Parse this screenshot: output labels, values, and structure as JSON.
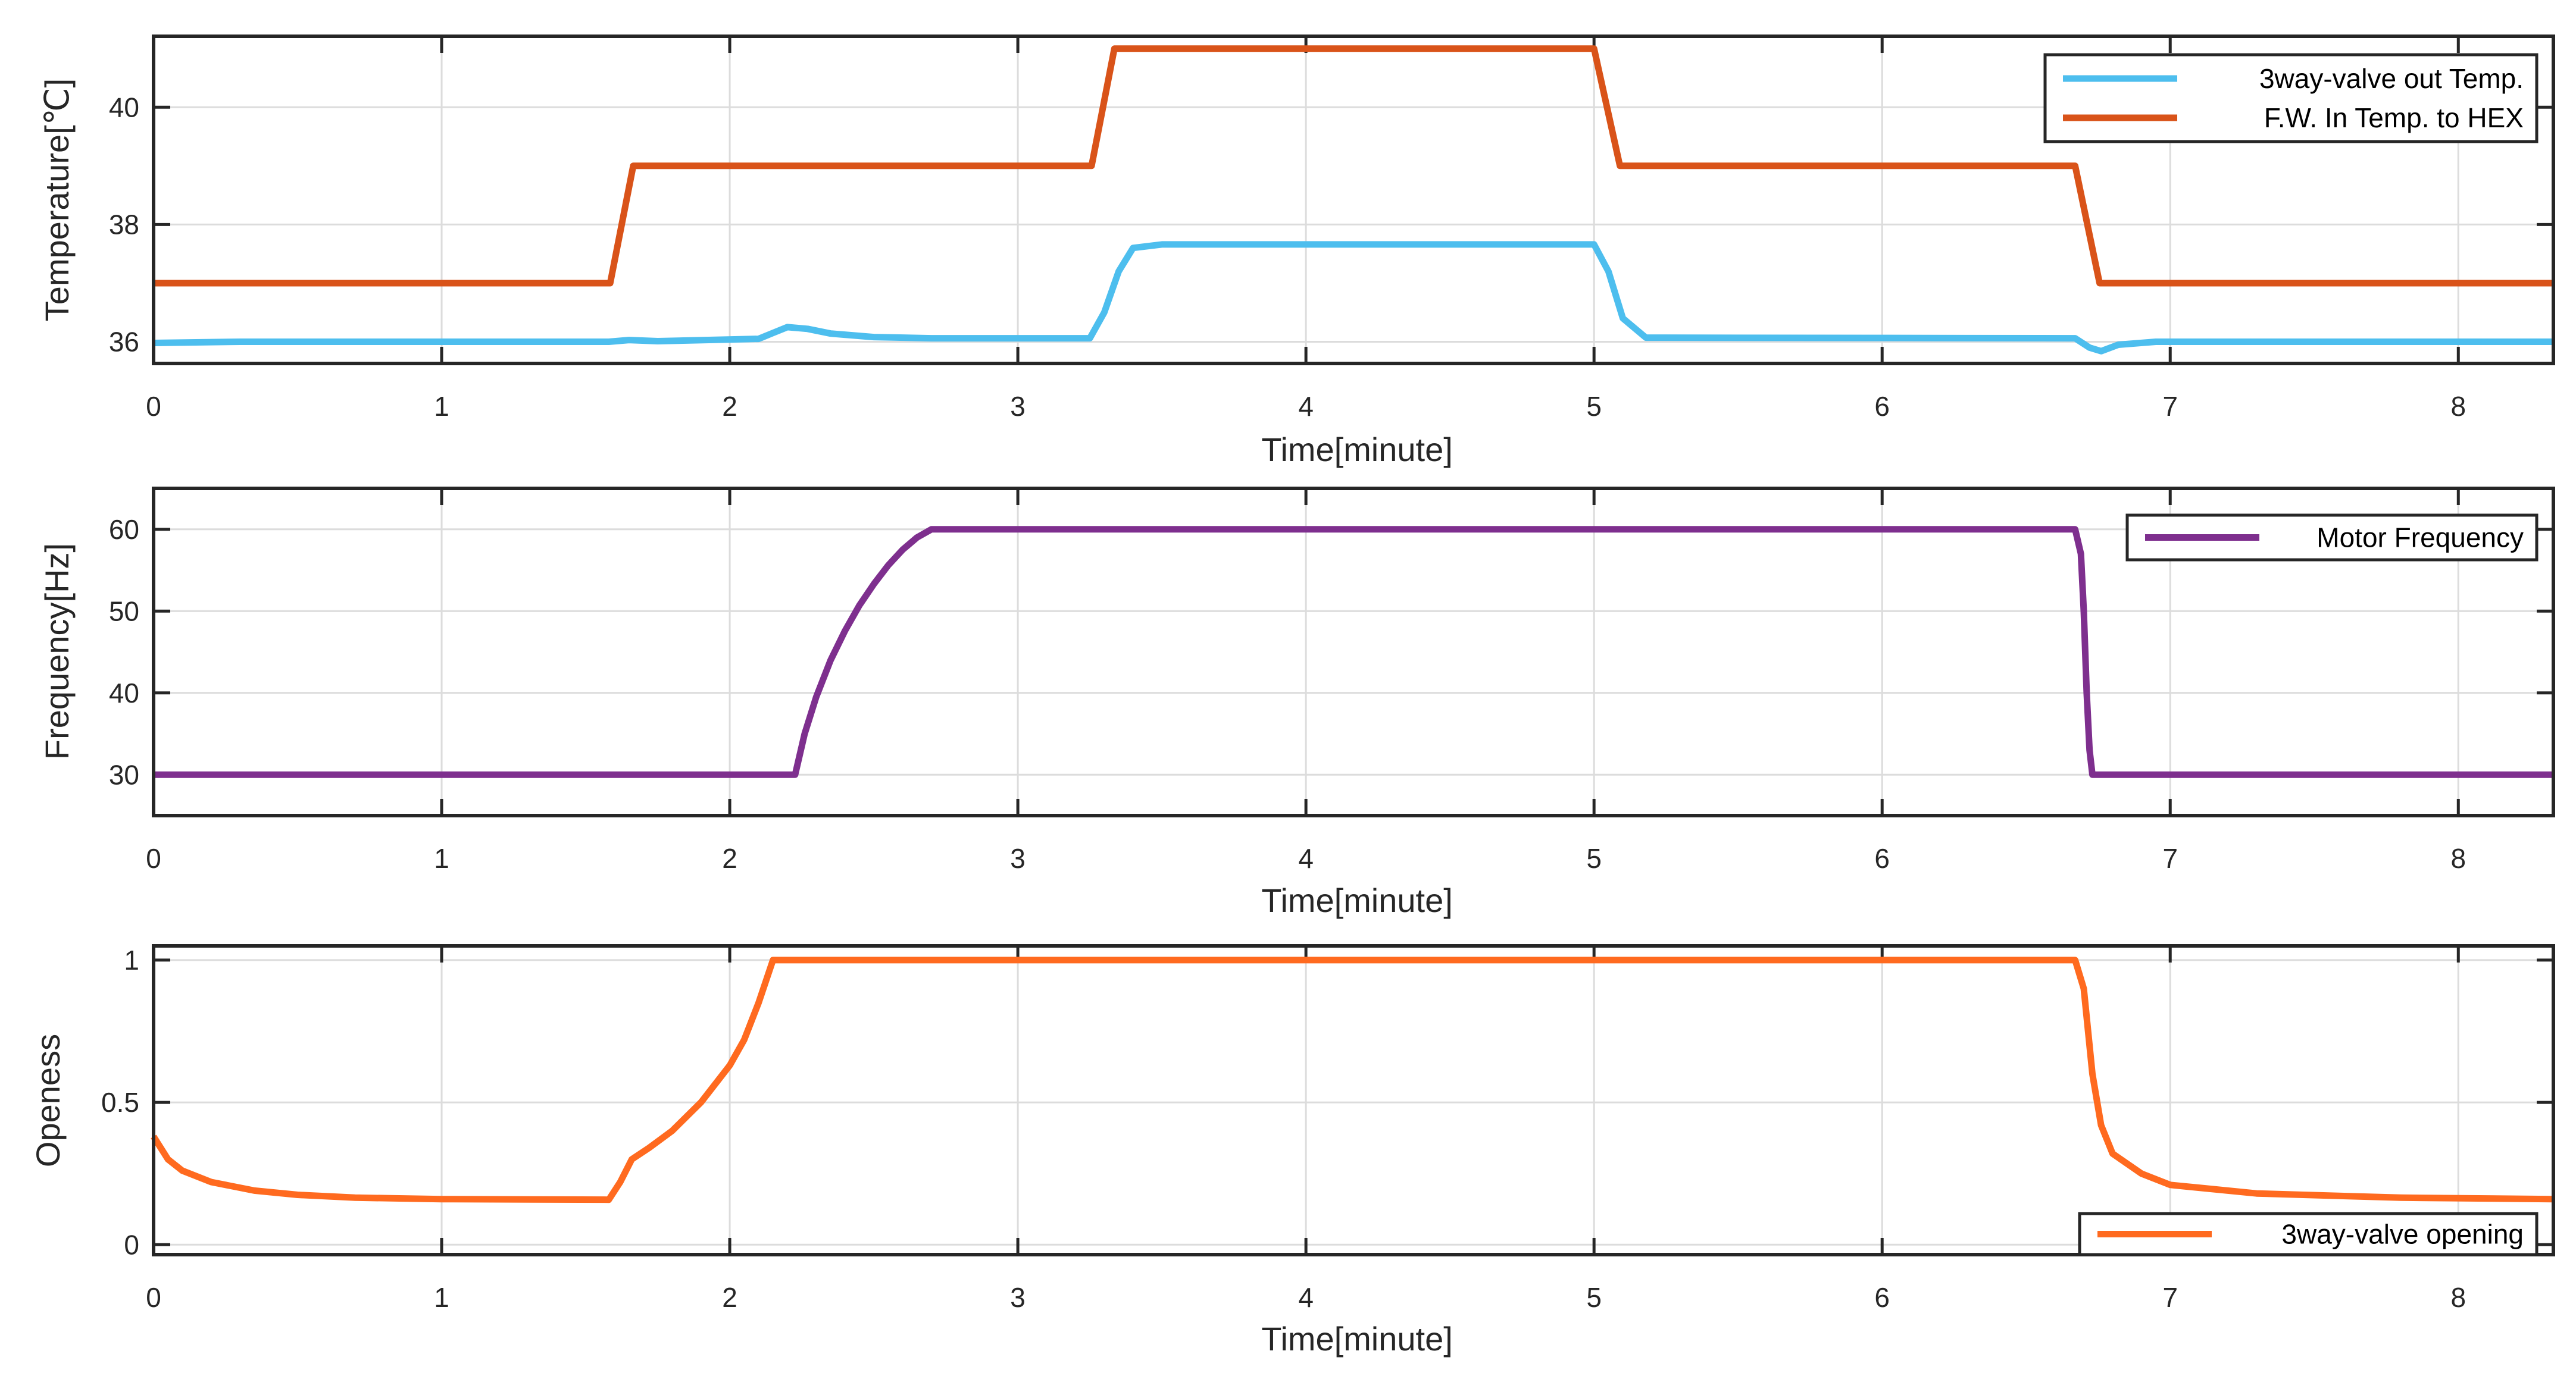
{
  "chart_data": [
    {
      "type": "line",
      "xlabel": "Time[minute]",
      "ylabel": "Temperature[℃]",
      "xlim": [
        0,
        8.33
      ],
      "ylim": [
        35.63,
        41.21
      ],
      "xticks": [
        0,
        1,
        2,
        3,
        4,
        5,
        6,
        7,
        8
      ],
      "yticks": [
        36,
        38,
        40
      ],
      "grid": true,
      "legend_position": "top-right",
      "series": [
        {
          "name": "3way-valve out Temp.",
          "color": "#4DBEEE",
          "points": [
            [
              0,
              35.98
            ],
            [
              0.3,
              36.0
            ],
            [
              1.58,
              36.0
            ],
            [
              1.65,
              36.03
            ],
            [
              1.75,
              36.01
            ],
            [
              2.1,
              36.05
            ],
            [
              2.15,
              36.15
            ],
            [
              2.2,
              36.25
            ],
            [
              2.27,
              36.22
            ],
            [
              2.35,
              36.14
            ],
            [
              2.5,
              36.08
            ],
            [
              2.7,
              36.06
            ],
            [
              3.25,
              36.06
            ],
            [
              3.3,
              36.5
            ],
            [
              3.35,
              37.2
            ],
            [
              3.4,
              37.6
            ],
            [
              3.5,
              37.66
            ],
            [
              5.0,
              37.66
            ],
            [
              5.05,
              37.2
            ],
            [
              5.1,
              36.4
            ],
            [
              5.18,
              36.07
            ],
            [
              6.67,
              36.06
            ],
            [
              6.72,
              35.9
            ],
            [
              6.76,
              35.84
            ],
            [
              6.82,
              35.95
            ],
            [
              6.95,
              36.0
            ],
            [
              8.33,
              36.0
            ]
          ]
        },
        {
          "name": "F.W. In Temp. to HEX",
          "color": "#D95319",
          "points": [
            [
              0,
              37
            ],
            [
              1.585,
              37
            ],
            [
              1.665,
              39
            ],
            [
              3.256,
              39
            ],
            [
              3.335,
              41
            ],
            [
              5.0,
              41
            ],
            [
              5.09,
              39
            ],
            [
              6.67,
              39
            ],
            [
              6.755,
              37
            ],
            [
              8.33,
              37
            ]
          ]
        }
      ]
    },
    {
      "type": "line",
      "xlabel": "Time[minute]",
      "ylabel": "Frequency[Hz]",
      "xlim": [
        0,
        8.33
      ],
      "ylim": [
        25,
        65
      ],
      "xticks": [
        0,
        1,
        2,
        3,
        4,
        5,
        6,
        7,
        8
      ],
      "yticks": [
        30,
        40,
        50,
        60
      ],
      "grid": true,
      "legend_position": "top-right",
      "series": [
        {
          "name": "Motor Frequency",
          "color": "#7E2F8E",
          "points": [
            [
              0,
              30
            ],
            [
              2.227,
              30
            ],
            [
              2.26,
              35
            ],
            [
              2.3,
              39.5
            ],
            [
              2.35,
              44
            ],
            [
              2.4,
              47.6
            ],
            [
              2.45,
              50.7
            ],
            [
              2.5,
              53.3
            ],
            [
              2.55,
              55.6
            ],
            [
              2.6,
              57.5
            ],
            [
              2.65,
              59
            ],
            [
              2.7,
              60
            ],
            [
              6.67,
              60
            ],
            [
              6.69,
              57
            ],
            [
              6.7,
              50
            ],
            [
              6.71,
              40
            ],
            [
              6.72,
              33
            ],
            [
              6.73,
              30
            ],
            [
              8.33,
              30
            ]
          ]
        }
      ]
    },
    {
      "type": "line",
      "xlabel": "Time[minute]",
      "ylabel": "Openess",
      "xlim": [
        0,
        8.33
      ],
      "ylim": [
        -0.035,
        1.05
      ],
      "xticks": [
        0,
        1,
        2,
        3,
        4,
        5,
        6,
        7,
        8
      ],
      "yticks": [
        0,
        0.5,
        1
      ],
      "grid": true,
      "legend_position": "bottom-right",
      "series": [
        {
          "name": "3way-valve opening",
          "color": "#FF6A1F",
          "points": [
            [
              0,
              0.38
            ],
            [
              0.05,
              0.3
            ],
            [
              0.1,
              0.26
            ],
            [
              0.2,
              0.22
            ],
            [
              0.35,
              0.19
            ],
            [
              0.5,
              0.175
            ],
            [
              0.7,
              0.165
            ],
            [
              1.0,
              0.16
            ],
            [
              1.58,
              0.158
            ],
            [
              1.62,
              0.22
            ],
            [
              1.66,
              0.3
            ],
            [
              1.72,
              0.34
            ],
            [
              1.8,
              0.4
            ],
            [
              1.9,
              0.5
            ],
            [
              2.0,
              0.63
            ],
            [
              2.05,
              0.72
            ],
            [
              2.1,
              0.85
            ],
            [
              2.15,
              1.0
            ],
            [
              6.67,
              1.0
            ],
            [
              6.7,
              0.9
            ],
            [
              6.73,
              0.6
            ],
            [
              6.76,
              0.42
            ],
            [
              6.8,
              0.32
            ],
            [
              6.9,
              0.25
            ],
            [
              7.0,
              0.21
            ],
            [
              7.3,
              0.18
            ],
            [
              7.8,
              0.165
            ],
            [
              8.33,
              0.16
            ]
          ]
        }
      ]
    }
  ]
}
